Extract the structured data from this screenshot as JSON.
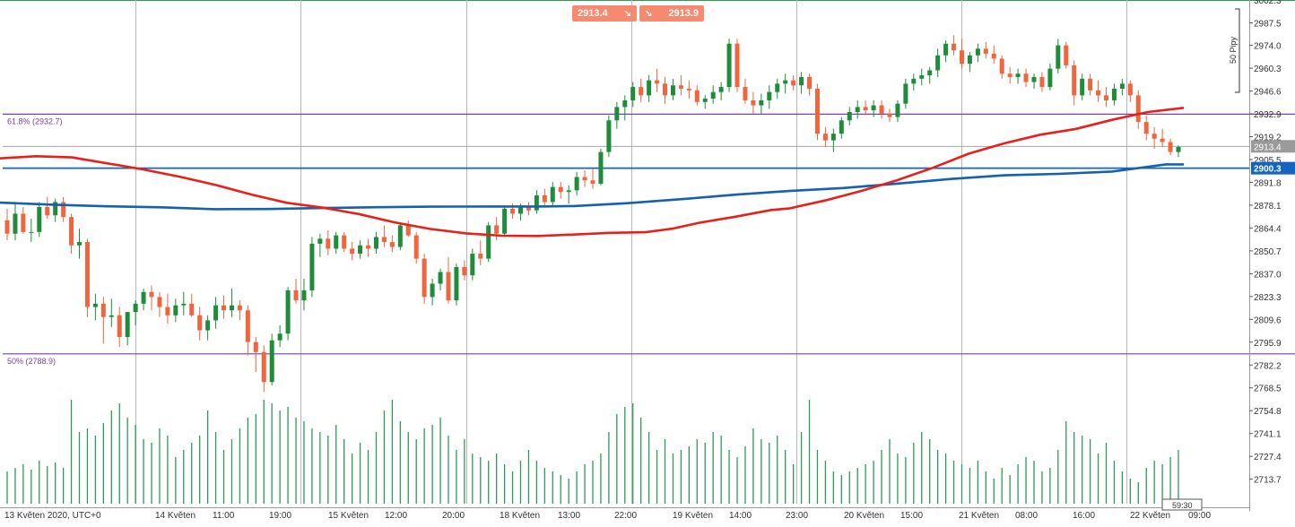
{
  "chart_data": {
    "type": "candlestick",
    "y_ticks": [
      2987.5,
      2974.0,
      2960.3,
      2946.6,
      2932.9,
      2919.2,
      2905.5,
      2891.8,
      2878.1,
      2864.4,
      2850.7,
      2837.0,
      2823.3,
      2809.6,
      2795.9,
      2782.2,
      2768.5,
      2754.8,
      2741.1,
      2727.4,
      2713.7
    ],
    "y_tick_labels": [
      "2987.5",
      "2974.0",
      "2960.3",
      "2946.6",
      "2932.9",
      "2919.2",
      "2905.5",
      "2891.8",
      "2878.1",
      "2864.4",
      "2850.7",
      "2837.0",
      "2823.3",
      "2809.6",
      "2795.9",
      "2782.2",
      "2768.5",
      "2754.8",
      "2741.1",
      "2727.4",
      "2713.7"
    ],
    "y_top_partial_label": "3002.3",
    "x_labels": [
      "13 Květen 2020, UTC+0",
      "14 Květen",
      "11:00",
      "19:00",
      "15 Květen",
      "12:00",
      "20:00",
      "18 Květen",
      "13:00",
      "22:00",
      "19 Květen",
      "14:00",
      "23:00",
      "20 Květen",
      "15:00",
      "21 Květen",
      "08:00",
      "16:00",
      "22 Květen",
      "09:00"
    ],
    "current_price": "2913.4",
    "level_label": "2900.3",
    "countdown": "59:30",
    "scale_label": "50 Pipy",
    "fib_levels": [
      {
        "label": "61.8% (2932.7)",
        "value": 2932.7,
        "color": "#7b3fa8"
      },
      {
        "label": "50% (2788.9)",
        "value": 2788.9,
        "color": "#7b3fa8"
      }
    ],
    "horizontal_level": {
      "value": 2900.3,
      "color": "#1565c0"
    },
    "quotes": {
      "bid": "2913.4",
      "ask": "2913.9",
      "bid_arrow": "↘",
      "ask_arrow": "↘"
    },
    "colors": {
      "up": "#1e8c3a",
      "down": "#f2643c",
      "ma_fast": "#e8201a",
      "ma_slow": "#1660b0",
      "volume": "#2e9a57",
      "grid": "#b8b8b8",
      "fib": "#7b3fa8",
      "level": "#1565c0"
    },
    "ohlc": [
      [
        2869,
        2876,
        2857,
        2861
      ],
      [
        2861,
        2879,
        2857,
        2873
      ],
      [
        2873,
        2877,
        2861,
        2862
      ],
      [
        2862,
        2870,
        2856,
        2862
      ],
      [
        2862,
        2880,
        2859,
        2877
      ],
      [
        2877,
        2883,
        2870,
        2872
      ],
      [
        2872,
        2882,
        2868,
        2880
      ],
      [
        2880,
        2883,
        2868,
        2871
      ],
      [
        2871,
        2873,
        2849,
        2854
      ],
      [
        2854,
        2864,
        2846,
        2856
      ],
      [
        2856,
        2858,
        2811,
        2817
      ],
      [
        2817,
        2825,
        2809,
        2819
      ],
      [
        2819,
        2823,
        2795,
        2811
      ],
      [
        2811,
        2822,
        2805,
        2812
      ],
      [
        2812,
        2817,
        2793,
        2799
      ],
      [
        2799,
        2814,
        2794,
        2814
      ],
      [
        2814,
        2821,
        2806,
        2819
      ],
      [
        2819,
        2828,
        2815,
        2826
      ],
      [
        2826,
        2830,
        2815,
        2823
      ],
      [
        2823,
        2826,
        2811,
        2817
      ],
      [
        2817,
        2825,
        2807,
        2812
      ],
      [
        2812,
        2822,
        2808,
        2818
      ],
      [
        2818,
        2826,
        2812,
        2819
      ],
      [
        2819,
        2825,
        2811,
        2812
      ],
      [
        2812,
        2817,
        2797,
        2803
      ],
      [
        2803,
        2812,
        2797,
        2809
      ],
      [
        2809,
        2823,
        2804,
        2818
      ],
      [
        2818,
        2824,
        2810,
        2815
      ],
      [
        2815,
        2828,
        2811,
        2818
      ],
      [
        2818,
        2821,
        2809,
        2815
      ],
      [
        2815,
        2818,
        2788,
        2796
      ],
      [
        2796,
        2799,
        2778,
        2790
      ],
      [
        2790,
        2794,
        2766,
        2772
      ],
      [
        2772,
        2801,
        2770,
        2797
      ],
      [
        2797,
        2806,
        2793,
        2801
      ],
      [
        2801,
        2829,
        2797,
        2827
      ],
      [
        2827,
        2834,
        2819,
        2821
      ],
      [
        2821,
        2834,
        2815,
        2827
      ],
      [
        2827,
        2859,
        2823,
        2855
      ],
      [
        2855,
        2861,
        2847,
        2858
      ],
      [
        2858,
        2863,
        2848,
        2852
      ],
      [
        2852,
        2862,
        2849,
        2860
      ],
      [
        2860,
        2862,
        2850,
        2852
      ],
      [
        2852,
        2856,
        2845,
        2849
      ],
      [
        2849,
        2857,
        2846,
        2854
      ],
      [
        2854,
        2858,
        2847,
        2852
      ],
      [
        2852,
        2862,
        2849,
        2859
      ],
      [
        2859,
        2866,
        2853,
        2856
      ],
      [
        2856,
        2860,
        2850,
        2853
      ],
      [
        2853,
        2868,
        2851,
        2866
      ],
      [
        2866,
        2869,
        2859,
        2860
      ],
      [
        2860,
        2862,
        2843,
        2846
      ],
      [
        2846,
        2849,
        2819,
        2823
      ],
      [
        2823,
        2834,
        2818,
        2831
      ],
      [
        2831,
        2840,
        2827,
        2838
      ],
      [
        2838,
        2847,
        2819,
        2821
      ],
      [
        2821,
        2843,
        2818,
        2841
      ],
      [
        2841,
        2845,
        2833,
        2836
      ],
      [
        2836,
        2852,
        2833,
        2849
      ],
      [
        2849,
        2857,
        2842,
        2846
      ],
      [
        2846,
        2868,
        2844,
        2866
      ],
      [
        2866,
        2871,
        2857,
        2861
      ],
      [
        2861,
        2878,
        2859,
        2876
      ],
      [
        2876,
        2879,
        2870,
        2873
      ],
      [
        2873,
        2879,
        2869,
        2877
      ],
      [
        2877,
        2880,
        2872,
        2875
      ],
      [
        2875,
        2887,
        2873,
        2884
      ],
      [
        2884,
        2888,
        2878,
        2880
      ],
      [
        2880,
        2892,
        2878,
        2889
      ],
      [
        2889,
        2892,
        2882,
        2886
      ],
      [
        2886,
        2890,
        2879,
        2887
      ],
      [
        2887,
        2898,
        2884,
        2895
      ],
      [
        2895,
        2899,
        2889,
        2893
      ],
      [
        2893,
        2900,
        2888,
        2891
      ],
      [
        2891,
        2912,
        2890,
        2910
      ],
      [
        2910,
        2932,
        2907,
        2929
      ],
      [
        2929,
        2940,
        2924,
        2937
      ],
      [
        2937,
        2944,
        2929,
        2941
      ],
      [
        2941,
        2952,
        2937,
        2949
      ],
      [
        2949,
        2954,
        2940,
        2944
      ],
      [
        2944,
        2956,
        2940,
        2953
      ],
      [
        2953,
        2960,
        2946,
        2951
      ],
      [
        2951,
        2955,
        2939,
        2944
      ],
      [
        2944,
        2954,
        2941,
        2950
      ],
      [
        2950,
        2956,
        2944,
        2948
      ],
      [
        2948,
        2953,
        2942,
        2947
      ],
      [
        2947,
        2950,
        2938,
        2940
      ],
      [
        2940,
        2944,
        2936,
        2942
      ],
      [
        2942,
        2950,
        2939,
        2946
      ],
      [
        2946,
        2952,
        2941,
        2949
      ],
      [
        2949,
        2978,
        2946,
        2975
      ],
      [
        2975,
        2978,
        2946,
        2949
      ],
      [
        2949,
        2954,
        2939,
        2941
      ],
      [
        2941,
        2946,
        2933,
        2938
      ],
      [
        2938,
        2945,
        2933,
        2941
      ],
      [
        2941,
        2950,
        2936,
        2946
      ],
      [
        2946,
        2954,
        2942,
        2951
      ],
      [
        2951,
        2957,
        2945,
        2953
      ],
      [
        2953,
        2956,
        2947,
        2950
      ],
      [
        2950,
        2958,
        2945,
        2955
      ],
      [
        2955,
        2957,
        2944,
        2948
      ],
      [
        2948,
        2951,
        2917,
        2921
      ],
      [
        2921,
        2925,
        2913,
        2917
      ],
      [
        2917,
        2924,
        2910,
        2921
      ],
      [
        2921,
        2931,
        2918,
        2929
      ],
      [
        2929,
        2937,
        2926,
        2934
      ],
      [
        2934,
        2941,
        2930,
        2937
      ],
      [
        2937,
        2941,
        2932,
        2935
      ],
      [
        2935,
        2941,
        2931,
        2938
      ],
      [
        2938,
        2941,
        2930,
        2933
      ],
      [
        2933,
        2936,
        2928,
        2931
      ],
      [
        2931,
        2941,
        2928,
        2939
      ],
      [
        2939,
        2954,
        2936,
        2951
      ],
      [
        2951,
        2957,
        2947,
        2954
      ],
      [
        2954,
        2960,
        2950,
        2956
      ],
      [
        2956,
        2961,
        2951,
        2959
      ],
      [
        2959,
        2972,
        2955,
        2968
      ],
      [
        2968,
        2977,
        2964,
        2975
      ],
      [
        2975,
        2980,
        2968,
        2971
      ],
      [
        2971,
        2978,
        2960,
        2963
      ],
      [
        2963,
        2970,
        2958,
        2968
      ],
      [
        2968,
        2975,
        2964,
        2972
      ],
      [
        2972,
        2976,
        2966,
        2969
      ],
      [
        2969,
        2974,
        2963,
        2966
      ],
      [
        2966,
        2968,
        2954,
        2957
      ],
      [
        2957,
        2961,
        2951,
        2955
      ],
      [
        2955,
        2960,
        2951,
        2957
      ],
      [
        2957,
        2960,
        2949,
        2952
      ],
      [
        2952,
        2957,
        2948,
        2955
      ],
      [
        2955,
        2958,
        2946,
        2949
      ],
      [
        2949,
        2963,
        2947,
        2960
      ],
      [
        2960,
        2978,
        2957,
        2974
      ],
      [
        2974,
        2976,
        2960,
        2962
      ],
      [
        2962,
        2965,
        2938,
        2944
      ],
      [
        2944,
        2957,
        2941,
        2954
      ],
      [
        2954,
        2957,
        2944,
        2947
      ],
      [
        2947,
        2953,
        2940,
        2944
      ],
      [
        2944,
        2949,
        2937,
        2941
      ],
      [
        2941,
        2951,
        2938,
        2948
      ],
      [
        2948,
        2954,
        2944,
        2951
      ],
      [
        2951,
        2953,
        2940,
        2944
      ],
      [
        2944,
        2947,
        2924,
        2928
      ],
      [
        2928,
        2932,
        2917,
        2921
      ],
      [
        2921,
        2925,
        2912,
        2918
      ],
      [
        2918,
        2924,
        2913,
        2916
      ],
      [
        2916,
        2918,
        2908,
        2910
      ],
      [
        2910,
        2914,
        2907,
        2913
      ]
    ],
    "volumes": [
      18,
      20,
      22,
      19,
      24,
      21,
      23,
      20,
      58,
      40,
      42,
      38,
      45,
      52,
      56,
      48,
      44,
      36,
      34,
      42,
      38,
      26,
      30,
      34,
      38,
      52,
      40,
      30,
      36,
      42,
      48,
      50,
      58,
      56,
      52,
      54,
      48,
      46,
      42,
      40,
      38,
      44,
      36,
      28,
      34,
      30,
      40,
      52,
      58,
      46,
      40,
      36,
      42,
      44,
      48,
      38,
      30,
      36,
      28,
      26,
      24,
      28,
      22,
      18,
      24,
      30,
      24,
      20,
      18,
      16,
      14,
      18,
      22,
      24,
      28,
      40,
      50,
      54,
      56,
      48,
      40,
      30,
      36,
      28,
      30,
      32,
      36,
      34,
      40,
      38,
      30,
      26,
      32,
      42,
      36,
      34,
      38,
      30,
      22,
      40,
      58,
      30,
      24,
      18,
      16,
      18,
      20,
      22,
      24,
      30,
      36,
      28,
      26,
      34,
      40,
      36,
      30,
      28,
      24,
      22,
      20,
      24,
      18,
      14,
      20,
      16,
      22,
      26,
      24,
      18,
      20,
      30,
      46,
      40,
      38,
      36,
      28,
      34,
      24,
      18,
      14,
      12,
      20,
      24,
      22,
      26,
      30
    ],
    "ma_fast": [
      [
        0,
        2906.2
      ],
      [
        40,
        2907.5
      ],
      [
        80,
        2906.8
      ],
      [
        120,
        2903.2
      ],
      [
        160,
        2899.5
      ],
      [
        200,
        2895.2
      ],
      [
        240,
        2890.3
      ],
      [
        280,
        2884.5
      ],
      [
        320,
        2879.5
      ],
      [
        360,
        2876.6
      ],
      [
        400,
        2872.8
      ],
      [
        440,
        2867.8
      ],
      [
        480,
        2863.8
      ],
      [
        520,
        2861.2
      ],
      [
        560,
        2859.8
      ],
      [
        600,
        2859.6
      ],
      [
        640,
        2860.5
      ],
      [
        680,
        2861.5
      ],
      [
        720,
        2861.9
      ],
      [
        750,
        2864.0
      ],
      [
        780,
        2867.6
      ],
      [
        820,
        2871.2
      ],
      [
        860,
        2875.2
      ],
      [
        880,
        2876.1
      ],
      [
        920,
        2880.9
      ],
      [
        960,
        2886.6
      ],
      [
        1000,
        2893.0
      ],
      [
        1040,
        2900.5
      ],
      [
        1080,
        2909.0
      ],
      [
        1120,
        2915.2
      ],
      [
        1160,
        2920.4
      ],
      [
        1200,
        2923.9
      ],
      [
        1240,
        2929.3
      ],
      [
        1280,
        2934.0
      ],
      [
        1320,
        2936.5
      ]
    ],
    "ma_slow": [
      [
        0,
        2879.6
      ],
      [
        60,
        2878.4
      ],
      [
        120,
        2877.4
      ],
      [
        180,
        2876.8
      ],
      [
        240,
        2875.7
      ],
      [
        300,
        2875.8
      ],
      [
        360,
        2876.4
      ],
      [
        420,
        2876.9
      ],
      [
        480,
        2877.2
      ],
      [
        540,
        2877.3
      ],
      [
        600,
        2877.3
      ],
      [
        640,
        2877.6
      ],
      [
        700,
        2879.3
      ],
      [
        760,
        2881.7
      ],
      [
        820,
        2884.4
      ],
      [
        880,
        2886.6
      ],
      [
        940,
        2888.4
      ],
      [
        1000,
        2891.0
      ],
      [
        1060,
        2893.8
      ],
      [
        1120,
        2896.0
      ],
      [
        1180,
        2896.9
      ],
      [
        1240,
        2898.3
      ],
      [
        1300,
        2902.6
      ],
      [
        1320,
        2902.6
      ]
    ]
  }
}
